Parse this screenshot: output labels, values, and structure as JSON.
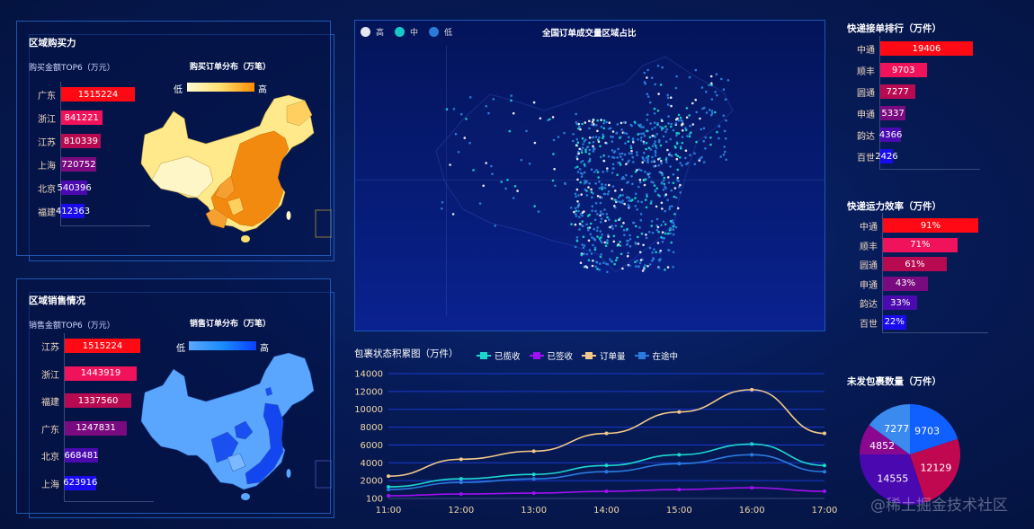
{
  "panels": {
    "purchase": {
      "title": "区域购买力",
      "bar_title": "购买金额TOP6（万元）",
      "map_title": "购买订单分布（万笔）",
      "legend_low": "低",
      "legend_high": "高"
    },
    "sales": {
      "title": "区域销售情况",
      "bar_title": "销售金额TOP6（万元）",
      "map_title": "销售订单分布（万笔）",
      "legend_low": "低",
      "legend_high": "高"
    },
    "national_map": {
      "title": "全国订单成交量区域占比",
      "legend": [
        {
          "label": "高",
          "color": "#e6e6f0"
        },
        {
          "label": "中",
          "color": "#18c8c8"
        },
        {
          "label": "低",
          "color": "#2a7ad8"
        }
      ]
    },
    "courier_rank": {
      "title": "快递接单排行（万件）"
    },
    "courier_eff": {
      "title": "快递运力效率（万件）"
    },
    "unshipped": {
      "title": "未发包裹数量（万件）"
    },
    "line": {
      "title": "包裹状态积累图（万件）"
    }
  },
  "watermark": "@稀土掘金技术社区",
  "chart_data": [
    {
      "type": "bar",
      "title": "购买金额TOP6（万元）",
      "categories": [
        "广东",
        "浙江",
        "江苏",
        "上海",
        "北京",
        "福建"
      ],
      "values": [
        1515224,
        841221,
        810339,
        720752,
        540396,
        412363
      ],
      "colors": [
        "#ff0a14",
        "#f0125a",
        "#b80a50",
        "#7a0a80",
        "#4a0ab0",
        "#1a0af0"
      ]
    },
    {
      "type": "bar",
      "title": "销售金额TOP6（万元）",
      "categories": [
        "江苏",
        "浙江",
        "福建",
        "广东",
        "北京",
        "上海"
      ],
      "values": [
        1515224,
        1443919,
        1337560,
        1247831,
        668481,
        623916
      ],
      "colors": [
        "#ff0a14",
        "#f0125a",
        "#b80a50",
        "#7a0a80",
        "#4a0ab0",
        "#1a0af0"
      ]
    },
    {
      "type": "bar",
      "title": "快递接单排行（万件）",
      "categories": [
        "中通",
        "顺丰",
        "圆通",
        "申通",
        "韵达",
        "百世"
      ],
      "values": [
        19406,
        9703,
        7277,
        5337,
        4366,
        2426
      ],
      "colors": [
        "#ff0a14",
        "#f0125a",
        "#b80a50",
        "#7a0a80",
        "#4a0ab0",
        "#1a0af0"
      ]
    },
    {
      "type": "bar",
      "title": "快递运力效率（万件）",
      "categories": [
        "中通",
        "顺丰",
        "圆通",
        "申通",
        "韵达",
        "百世"
      ],
      "values": [
        91,
        71,
        61,
        43,
        33,
        22
      ],
      "labels": [
        "91%",
        "71%",
        "61%",
        "43%",
        "33%",
        "22%"
      ],
      "colors": [
        "#ff0a14",
        "#f0125a",
        "#b80a50",
        "#7a0a80",
        "#4a0ab0",
        "#1a0af0"
      ]
    },
    {
      "type": "line",
      "title": "包裹状态积累图（万件）",
      "x": [
        "11:00",
        "12:00",
        "13:00",
        "14:00",
        "15:00",
        "16:00",
        "17:00"
      ],
      "yticks": [
        100,
        2000,
        4000,
        6000,
        8000,
        10000,
        12000,
        14000
      ],
      "ylim": [
        100,
        14000
      ],
      "series": [
        {
          "name": "已揽收",
          "color": "#1ed6d0",
          "values": [
            1300,
            2200,
            2700,
            3700,
            4900,
            6100,
            3700
          ]
        },
        {
          "name": "已签收",
          "color": "#a010f0",
          "values": [
            300,
            500,
            600,
            800,
            1000,
            1200,
            800
          ]
        },
        {
          "name": "订单量",
          "color": "#f2c98a",
          "values": [
            2500,
            4400,
            5300,
            7300,
            9700,
            12200,
            7300
          ]
        },
        {
          "name": "在途中",
          "color": "#2a7ae0",
          "values": [
            1000,
            1800,
            2200,
            3000,
            3900,
            4900,
            3000
          ]
        }
      ],
      "grid": true,
      "legend_position": "top"
    },
    {
      "type": "pie",
      "title": "未发包裹数量（万件）",
      "slices": [
        {
          "label": "9703",
          "value": 9703,
          "color": "#1060ff"
        },
        {
          "label": "12129",
          "value": 12129,
          "color": "#c00850"
        },
        {
          "label": "14555",
          "value": 14555,
          "color": "#4a08b0"
        },
        {
          "label": "4852",
          "value": 4852,
          "color": "#8a0890"
        },
        {
          "label": "7277",
          "value": 7277,
          "color": "#3a8af0"
        }
      ]
    }
  ]
}
